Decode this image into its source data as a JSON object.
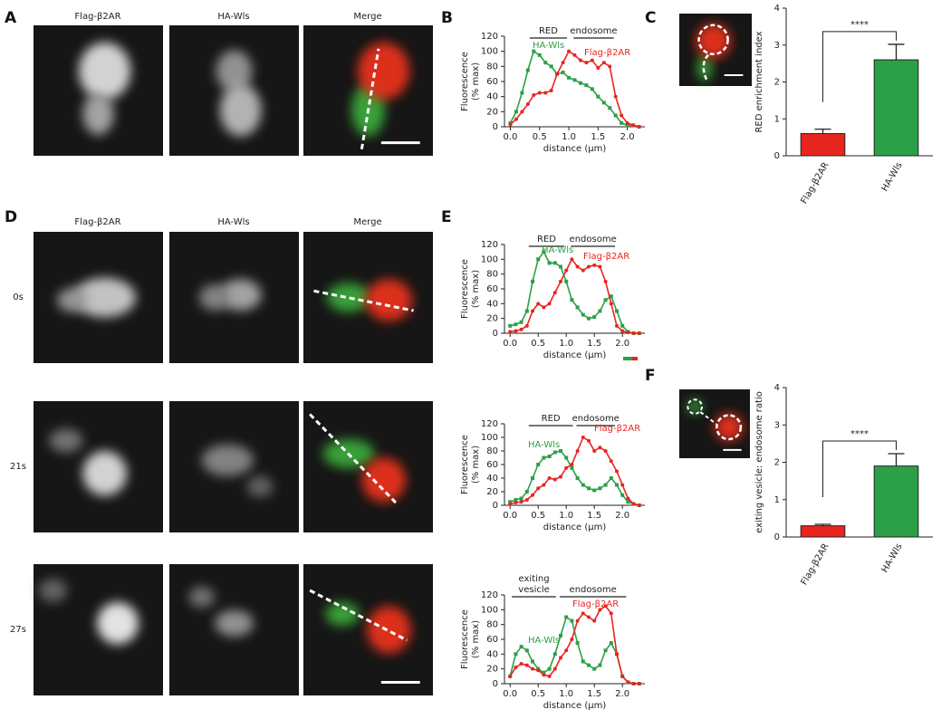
{
  "figure": {
    "panel_labels": [
      "A",
      "B",
      "C",
      "D",
      "E",
      "F"
    ],
    "a_headers": [
      "Flag-β2AR",
      "HA-Wls",
      "Merge"
    ],
    "d_headers": [
      "Flag-β2AR",
      "HA-Wls",
      "Merge"
    ],
    "times": [
      "0s",
      "21s",
      "27s"
    ]
  },
  "chart_data": [
    {
      "type": "line",
      "ylabel": [
        "Fluorescence",
        "(% max)"
      ],
      "xlabel": "distance (µm)",
      "x": [
        0,
        0.1,
        0.2,
        0.3,
        0.4,
        0.5,
        0.6,
        0.7,
        0.8,
        0.9,
        1.0,
        1.1,
        1.2,
        1.3,
        1.4,
        1.5,
        1.6,
        1.7,
        1.8,
        1.9,
        2.0,
        2.1,
        2.2
      ],
      "series": [
        {
          "name": "HA-Wls",
          "color": "#2ca048",
          "marker": "square",
          "values": [
            5,
            20,
            45,
            75,
            100,
            95,
            85,
            80,
            70,
            72,
            65,
            62,
            58,
            55,
            50,
            40,
            32,
            25,
            15,
            5,
            2,
            2,
            0
          ]
        },
        {
          "name": "Flag-β2AR",
          "color": "#e8251f",
          "marker": "circle",
          "values": [
            3,
            10,
            20,
            30,
            42,
            45,
            45,
            48,
            70,
            85,
            100,
            95,
            88,
            85,
            88,
            78,
            85,
            80,
            40,
            15,
            5,
            2,
            0
          ]
        }
      ],
      "brackets": [
        {
          "label": [
            "RED"
          ],
          "x": [
            0.3,
            1.0
          ]
        },
        {
          "label": [
            "endosome"
          ],
          "x": [
            1.05,
            1.8
          ]
        }
      ],
      "xlim": [
        -0.1,
        2.3
      ],
      "xticks": [
        {
          "value": 0,
          "label": "0.0"
        },
        0.5,
        {
          "value": 1,
          "label": "1.0"
        },
        1.5,
        {
          "value": 2,
          "label": "2.0"
        }
      ],
      "ylim": [
        0,
        120
      ],
      "yticks": [
        0,
        20,
        40,
        60,
        80,
        100,
        120
      ]
    },
    {
      "type": "bar",
      "ylabel": "RED enrichment index",
      "categories": [
        "Flag-β2AR",
        "HA-Wls"
      ],
      "values": [
        0.6,
        2.6
      ],
      "errors": [
        0.12,
        0.42
      ],
      "colors": [
        "#e8251f",
        "#2ca048"
      ],
      "significance": "****",
      "ylim": [
        0,
        4
      ],
      "yticks": [
        0,
        1,
        2,
        3,
        4
      ]
    },
    {
      "type": "line",
      "ylabel": [
        "Fluorescence",
        "(% max)"
      ],
      "xlabel": "distance (µm)",
      "x": [
        0,
        0.1,
        0.2,
        0.3,
        0.4,
        0.5,
        0.6,
        0.7,
        0.8,
        0.9,
        1.0,
        1.1,
        1.2,
        1.3,
        1.4,
        1.5,
        1.6,
        1.7,
        1.8,
        1.9,
        2.0,
        2.1,
        2.2,
        2.3
      ],
      "series": [
        {
          "name": "HA-Wls",
          "color": "#2ca048",
          "marker": "square",
          "values": [
            10,
            12,
            15,
            30,
            70,
            100,
            110,
            95,
            95,
            90,
            70,
            45,
            35,
            25,
            20,
            22,
            30,
            45,
            50,
            30,
            10,
            2,
            0,
            0
          ]
        },
        {
          "name": "Flag-β2AR",
          "color": "#e8251f",
          "marker": "circle",
          "values": [
            2,
            3,
            5,
            10,
            30,
            40,
            35,
            40,
            55,
            70,
            85,
            100,
            90,
            85,
            90,
            92,
            90,
            70,
            40,
            10,
            3,
            1,
            0,
            0
          ]
        }
      ],
      "brackets": [
        {
          "label": [
            "RED"
          ],
          "x": [
            0.3,
            1.0
          ]
        },
        {
          "label": [
            "endosome"
          ],
          "x": [
            1.05,
            1.9
          ]
        }
      ],
      "xlim": [
        -0.1,
        2.4
      ],
      "xticks": [
        {
          "value": 0,
          "label": "0.0"
        },
        0.5,
        {
          "value": 1,
          "label": "1.0"
        },
        1.5,
        {
          "value": 2,
          "label": "2.0"
        }
      ],
      "ylim": [
        0,
        120
      ],
      "yticks": [
        0,
        20,
        40,
        60,
        80,
        100,
        120
      ]
    },
    {
      "type": "line",
      "ylabel": [
        "Fluorescence",
        "(% max)"
      ],
      "xlabel": "distance (µm)",
      "x": [
        0,
        0.1,
        0.2,
        0.3,
        0.4,
        0.5,
        0.6,
        0.7,
        0.8,
        0.9,
        1.0,
        1.1,
        1.2,
        1.3,
        1.4,
        1.5,
        1.6,
        1.7,
        1.8,
        1.9,
        2.0,
        2.1,
        2.2,
        2.3
      ],
      "series": [
        {
          "name": "HA-Wls",
          "color": "#2ca048",
          "marker": "square",
          "values": [
            5,
            8,
            10,
            20,
            40,
            60,
            70,
            72,
            78,
            80,
            70,
            55,
            40,
            30,
            25,
            22,
            25,
            30,
            40,
            30,
            15,
            5,
            2,
            0
          ]
        },
        {
          "name": "Flag-β2AR",
          "color": "#e8251f",
          "marker": "circle",
          "values": [
            2,
            4,
            5,
            8,
            15,
            25,
            30,
            40,
            38,
            42,
            55,
            60,
            80,
            100,
            95,
            80,
            85,
            80,
            65,
            50,
            30,
            10,
            2,
            0
          ]
        }
      ],
      "brackets": [
        {
          "label": [
            "RED"
          ],
          "x": [
            0.3,
            1.15
          ]
        },
        {
          "label": [
            "endosome"
          ],
          "x": [
            1.15,
            1.9
          ]
        }
      ],
      "xlim": [
        -0.1,
        2.4
      ],
      "xticks": [
        {
          "value": 0,
          "label": "0.0"
        },
        0.5,
        {
          "value": 1,
          "label": "1.0"
        },
        1.5,
        {
          "value": 2,
          "label": "2.0"
        }
      ],
      "ylim": [
        0,
        120
      ],
      "yticks": [
        0,
        20,
        40,
        60,
        80,
        100,
        120
      ]
    },
    {
      "type": "line",
      "ylabel": [
        "Fluorescence",
        "(% max)"
      ],
      "xlabel": "distance (µm)",
      "x": [
        0,
        0.1,
        0.2,
        0.3,
        0.4,
        0.5,
        0.6,
        0.7,
        0.8,
        0.9,
        1.0,
        1.1,
        1.2,
        1.3,
        1.4,
        1.5,
        1.6,
        1.7,
        1.8,
        1.9,
        2.0,
        2.1,
        2.2,
        2.3
      ],
      "series": [
        {
          "name": "HA-Wls",
          "color": "#2ca048",
          "marker": "square",
          "values": [
            10,
            40,
            50,
            45,
            30,
            20,
            15,
            20,
            40,
            65,
            90,
            85,
            55,
            30,
            25,
            20,
            25,
            45,
            55,
            40,
            10,
            2,
            0,
            0
          ]
        },
        {
          "name": "Flag-β2AR",
          "color": "#e8251f",
          "marker": "circle",
          "values": [
            10,
            22,
            27,
            25,
            20,
            18,
            12,
            10,
            20,
            35,
            45,
            60,
            85,
            95,
            90,
            85,
            100,
            105,
            95,
            40,
            10,
            2,
            0,
            0
          ]
        }
      ],
      "brackets": [
        {
          "label": [
            "exiting",
            "vesicle"
          ],
          "x": [
            0.0,
            0.85
          ]
        },
        {
          "label": [
            "endosome"
          ],
          "x": [
            0.85,
            2.1
          ]
        }
      ],
      "xlim": [
        -0.1,
        2.4
      ],
      "xticks": [
        {
          "value": 0,
          "label": "0.0"
        },
        0.5,
        {
          "value": 1,
          "label": "1.0"
        },
        1.5,
        {
          "value": 2,
          "label": "2.0"
        }
      ],
      "ylim": [
        0,
        120
      ],
      "yticks": [
        0,
        20,
        40,
        60,
        80,
        100,
        120
      ]
    },
    {
      "type": "bar",
      "ylabel": "exiting vesicle: endosome ratio",
      "categories": [
        "Flag-β2AR",
        "HA-Wls"
      ],
      "values": [
        0.3,
        1.9
      ],
      "errors": [
        0.04,
        0.33
      ],
      "colors": [
        "#e8251f",
        "#2ca048"
      ],
      "significance": "****",
      "ylim": [
        0,
        4
      ],
      "yticks": [
        0,
        1,
        2,
        3,
        4
      ]
    }
  ]
}
